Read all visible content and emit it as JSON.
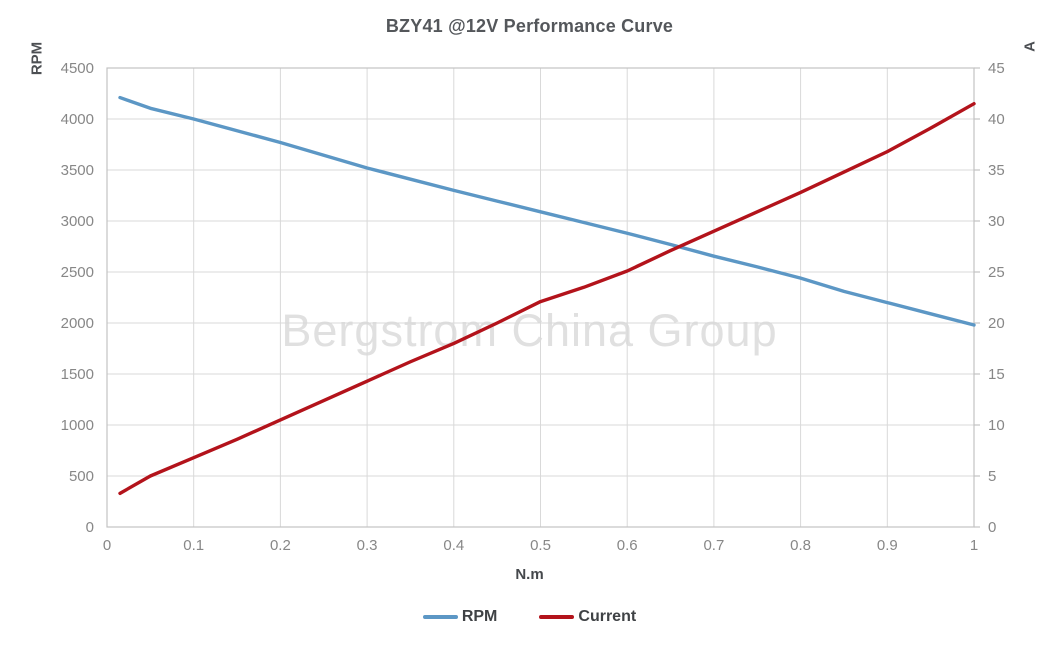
{
  "chart_data": {
    "type": "line",
    "title": "BZY41 @12V Performance Curve",
    "xlabel": "N.m",
    "watermark": "Bergstrom China Group",
    "grid": true,
    "legend_position": "bottom",
    "x_axis": {
      "range": [
        0,
        1
      ],
      "ticks": [
        0,
        0.1,
        0.2,
        0.3,
        0.4,
        0.5,
        0.6,
        0.7,
        0.8,
        0.9,
        1
      ]
    },
    "left_axis": {
      "label": "RPM",
      "range": [
        0,
        4500
      ],
      "ticks": [
        0,
        500,
        1000,
        1500,
        2000,
        2500,
        3000,
        3500,
        4000,
        4500
      ]
    },
    "right_axis": {
      "label": "A",
      "range": [
        0,
        45
      ],
      "ticks": [
        0,
        5,
        10,
        15,
        20,
        25,
        30,
        35,
        40,
        45
      ]
    },
    "x": [
      0.015,
      0.05,
      0.1,
      0.15,
      0.2,
      0.25,
      0.3,
      0.35,
      0.4,
      0.45,
      0.5,
      0.55,
      0.6,
      0.65,
      0.7,
      0.75,
      0.8,
      0.85,
      0.9,
      0.95,
      1.0
    ],
    "series": [
      {
        "name": "RPM",
        "axis": "left",
        "color": "#5c97c5",
        "values": [
          4210,
          4105,
          4000,
          3885,
          3770,
          3645,
          3520,
          3410,
          3300,
          3195,
          3090,
          2985,
          2880,
          2770,
          2655,
          2550,
          2440,
          2310,
          2200,
          2090,
          1980
        ]
      },
      {
        "name": "Current",
        "axis": "right",
        "color": "#b3131b",
        "values": [
          3.3,
          5.0,
          6.8,
          8.6,
          10.5,
          12.4,
          14.3,
          16.2,
          18.0,
          20.0,
          22.1,
          23.5,
          25.1,
          27.1,
          29.0,
          30.9,
          32.8,
          34.8,
          36.8,
          39.1,
          41.5
        ]
      }
    ]
  },
  "colors": {
    "rpm_line": "#5c97c5",
    "current_line": "#b3131b",
    "gridline": "#d9d9d9",
    "plot_frame": "#c3c3c3",
    "tick_text": "#878787",
    "title_text": "#54575b",
    "watermark_text": "#e0e0e0",
    "background": "#ffffff"
  }
}
